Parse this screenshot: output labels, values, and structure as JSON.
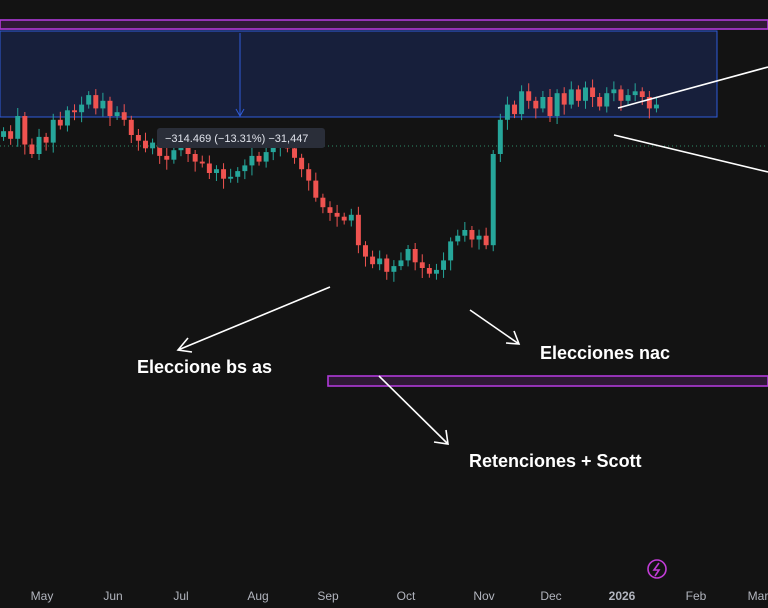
{
  "colors": {
    "background": "#131313",
    "up": "#26a69a",
    "down": "#ef5350",
    "zone_purple": "#b03ad9",
    "zone_blue_fill": "#1b2a5c",
    "zone_blue_border": "#2f5bd8",
    "annotation": "#ffffff",
    "axis_text": "#b2b5be",
    "dotted_line": "#2e8c6a"
  },
  "measure_label": "−314.469 (−13.31%) −31,447",
  "annotations": {
    "elecciones_bs_as": "Eleccione bs as",
    "elecciones_nac": "Elecciones nac",
    "retenciones_scott": "Retenciones + Scott"
  },
  "icons": {
    "badge": "lightning-icon"
  },
  "chart_data": {
    "type": "candlestick",
    "x_axis_labels": [
      "May",
      "Jun",
      "Jul",
      "Aug",
      "Sep",
      "Oct",
      "Nov",
      "Dec",
      "2026",
      "Feb",
      "Mar"
    ],
    "price_scale": "relative (screen-read, unitless)",
    "candles_close": [
      52,
      48,
      60,
      45,
      40,
      49,
      46,
      58,
      55,
      63,
      62,
      66,
      71,
      64,
      68,
      60,
      62,
      58,
      50,
      47,
      43,
      46,
      39,
      37,
      42,
      44,
      40,
      36,
      35,
      30,
      32,
      27,
      28,
      31,
      34,
      39,
      36,
      41,
      44,
      46,
      43,
      38,
      32,
      26,
      17,
      12,
      9,
      7,
      5,
      8,
      -8,
      -14,
      -18,
      -15,
      -22,
      -19,
      -16,
      -10,
      -17,
      -20,
      -23,
      -21,
      -16,
      -6,
      -3,
      0,
      -5,
      -3,
      -8,
      40,
      58,
      66,
      61,
      73,
      68,
      64,
      70,
      60,
      72,
      66,
      74,
      68,
      75,
      70,
      65,
      72,
      74,
      68,
      71,
      73,
      70,
      64,
      66
    ]
  }
}
